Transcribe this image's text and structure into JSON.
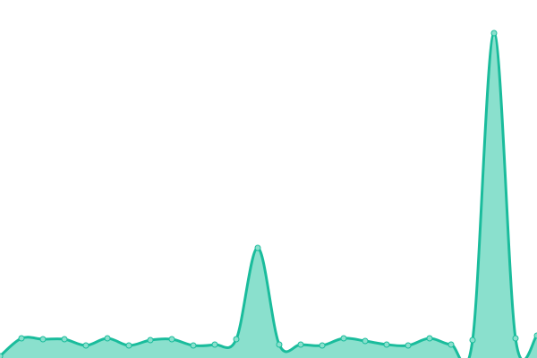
{
  "chart_data": {
    "type": "area",
    "title": "",
    "xlabel": "",
    "ylabel": "",
    "x": [
      0,
      1,
      2,
      3,
      4,
      5,
      6,
      7,
      8,
      9,
      10,
      11,
      12,
      13,
      14,
      15,
      16,
      17,
      18,
      19,
      20,
      21,
      22,
      23,
      24,
      25
    ],
    "values": [
      2,
      22,
      21,
      21,
      14,
      22,
      14,
      20,
      21,
      14,
      15,
      21,
      123,
      15,
      15,
      14,
      22,
      19,
      15,
      14,
      22,
      15,
      20,
      363,
      22,
      25
    ],
    "ylim": [
      0,
      400
    ],
    "grid": false,
    "colors": {
      "line": "#1abc9c",
      "fill": "#8ae0cd",
      "marker_fill": "#8ae0cd",
      "marker_stroke": "#1abc9c"
    }
  }
}
